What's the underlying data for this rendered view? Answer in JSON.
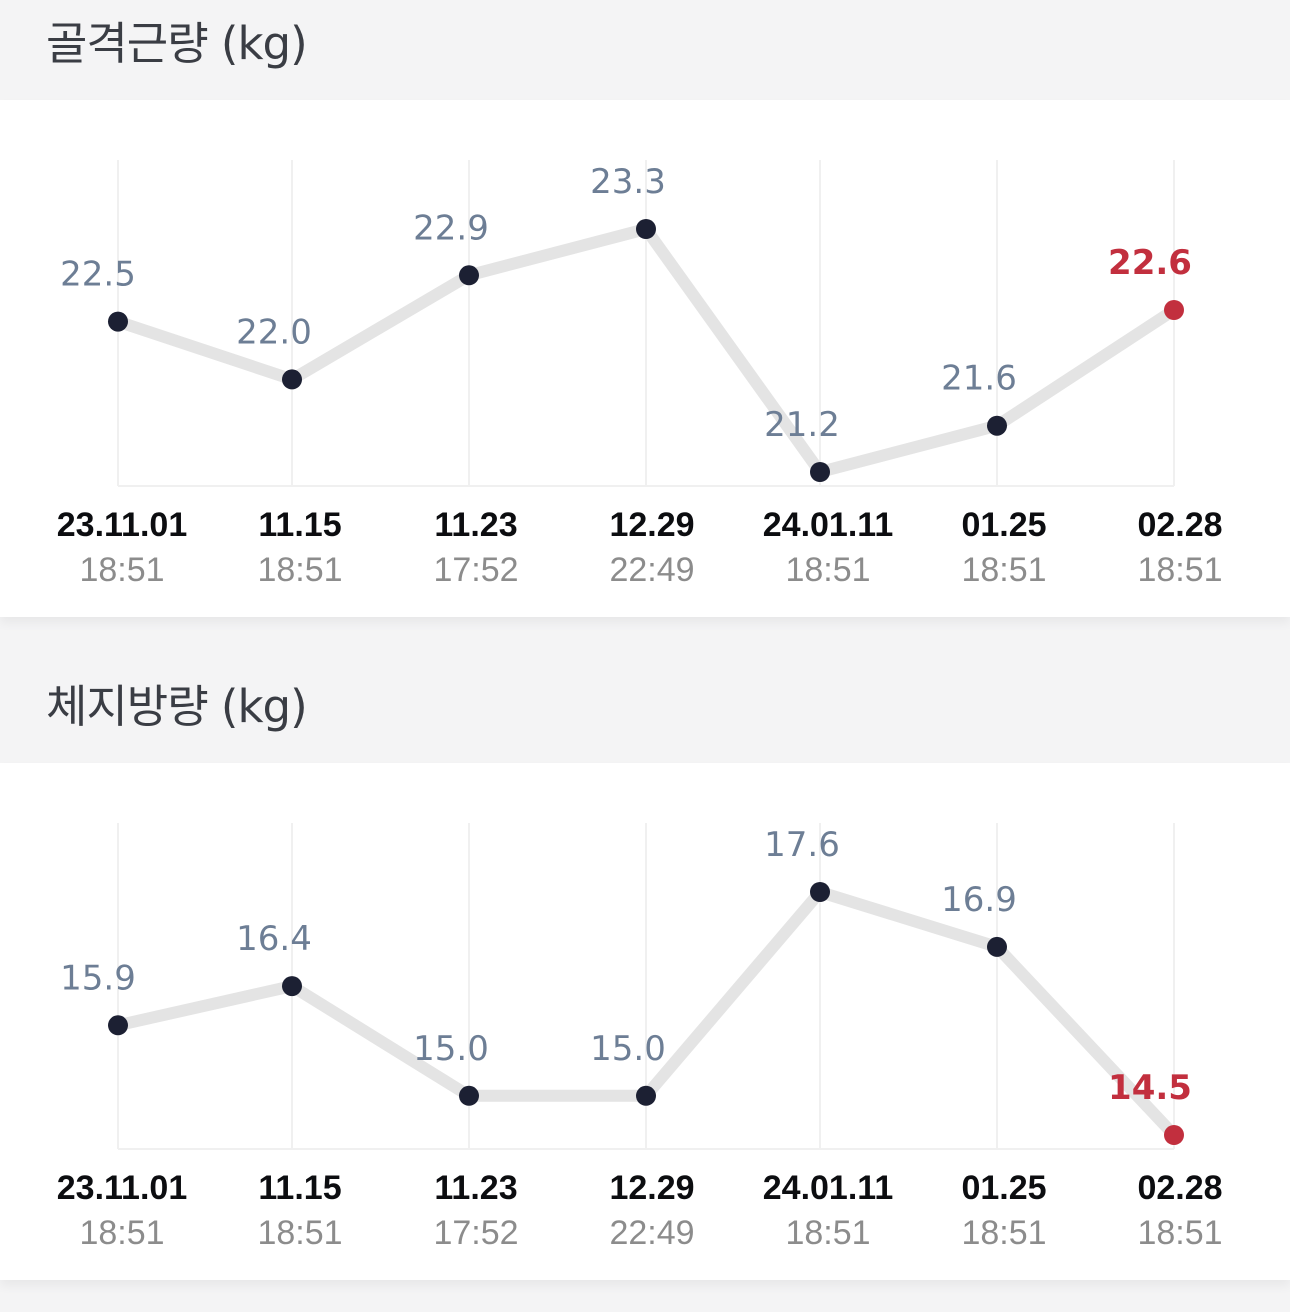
{
  "colors": {
    "line": "#e4e4e4",
    "point": "#1c2033",
    "last_point": "#c22f3e",
    "grid": "#f0f0f0",
    "value_label": "#6d7e95",
    "date_label": "#0c0d10",
    "time_label": "#8c8c8c"
  },
  "chart_data": [
    {
      "type": "line",
      "title": "골격근량 (kg)",
      "categories": [
        "23.11.01",
        "11.15",
        "11.23",
        "12.29",
        "24.01.11",
        "01.25",
        "02.28"
      ],
      "times": [
        "18:51",
        "18:51",
        "17:52",
        "22:49",
        "18:51",
        "18:51",
        "18:51"
      ],
      "values": [
        22.5,
        22.0,
        22.9,
        23.3,
        21.2,
        21.6,
        22.6
      ],
      "value_labels": [
        "22.5",
        "22.0",
        "22.9",
        "23.3",
        "21.2",
        "21.6",
        "22.6"
      ],
      "ylim": [
        21.2,
        23.3
      ],
      "grid": "vertical",
      "highlight_last": true
    },
    {
      "type": "line",
      "title": "체지방량 (kg)",
      "categories": [
        "23.11.01",
        "11.15",
        "11.23",
        "12.29",
        "24.01.11",
        "01.25",
        "02.28"
      ],
      "times": [
        "18:51",
        "18:51",
        "17:52",
        "22:49",
        "18:51",
        "18:51",
        "18:51"
      ],
      "values": [
        15.9,
        16.4,
        15.0,
        15.0,
        17.6,
        16.9,
        14.5
      ],
      "value_labels": [
        "15.9",
        "16.4",
        "15.0",
        "15.0",
        "17.6",
        "16.9",
        "14.5"
      ],
      "ylim": [
        14.5,
        17.6
      ],
      "grid": "vertical",
      "highlight_last": true
    }
  ]
}
